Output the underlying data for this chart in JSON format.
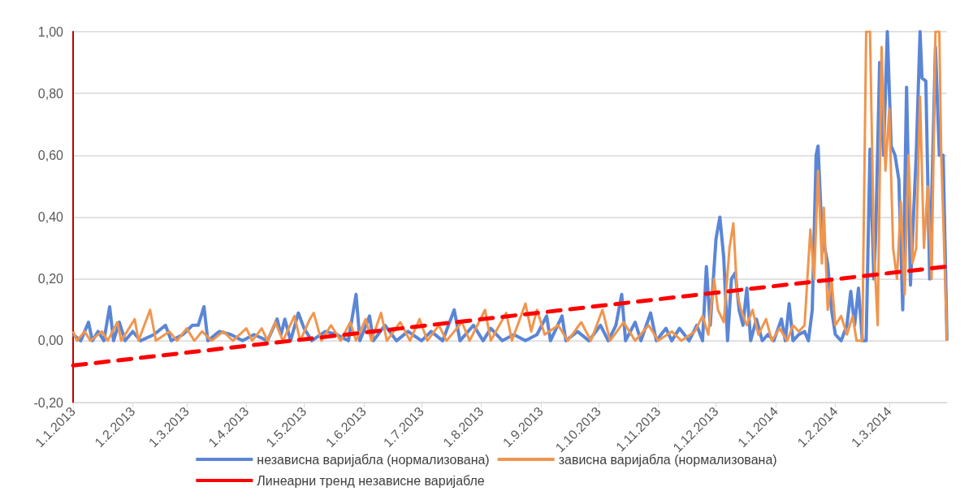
{
  "chart_data": {
    "type": "line",
    "marker": "none",
    "grid": "y",
    "legend": "bottom",
    "xlim": [
      "2013-01-01",
      "2014-03-31"
    ],
    "xticks": [
      {
        "value": "2013-01-01",
        "label": "1.1.2013"
      },
      {
        "value": "2013-02-01",
        "label": "1.2.2013"
      },
      {
        "value": "2013-03-01",
        "label": "1.3.2013"
      },
      {
        "value": "2013-04-01",
        "label": "1.4.2013"
      },
      {
        "value": "2013-05-01",
        "label": "1.5.2013"
      },
      {
        "value": "2013-06-01",
        "label": "1.6.2013"
      },
      {
        "value": "2013-07-01",
        "label": "1.7.2013"
      },
      {
        "value": "2013-08-01",
        "label": "1.8.2013"
      },
      {
        "value": "2013-09-01",
        "label": "1.9.2013"
      },
      {
        "value": "2013-10-01",
        "label": "1.10.2013"
      },
      {
        "value": "2013-11-01",
        "label": "1.11.2013"
      },
      {
        "value": "2013-12-01",
        "label": "1.12.2013"
      },
      {
        "value": "2014-01-01",
        "label": "1.1.2014"
      },
      {
        "value": "2014-02-01",
        "label": "1.2.2014"
      },
      {
        "value": "2014-03-01",
        "label": "1.3.2014"
      }
    ],
    "ylim": [
      -0.2,
      1
    ],
    "yticks": [
      {
        "value": -0.2,
        "label": "-0,20"
      },
      {
        "value": 0,
        "label": "0,00"
      },
      {
        "value": 0.2,
        "label": "0,20"
      },
      {
        "value": 0.4,
        "label": "0,40"
      },
      {
        "value": 0.6,
        "label": "0,60"
      },
      {
        "value": 0.8,
        "label": "0,80"
      },
      {
        "value": 1,
        "label": "1,00"
      }
    ],
    "series": [
      {
        "name": "независна варијабла (нормализована)",
        "color": "#5b86d6",
        "line_style": "solid",
        "x": [
          "2013-01-01",
          "2013-01-05",
          "2013-01-09",
          "2013-01-11",
          "2013-01-14",
          "2013-01-17",
          "2013-01-20",
          "2013-01-22",
          "2013-01-25",
          "2013-01-28",
          "2013-02-01",
          "2013-02-05",
          "2013-02-12",
          "2013-02-18",
          "2013-02-21",
          "2013-02-27",
          "2013-03-04",
          "2013-03-07",
          "2013-03-10",
          "2013-03-12",
          "2013-03-18",
          "2013-03-24",
          "2013-03-30",
          "2013-04-05",
          "2013-04-12",
          "2013-04-17",
          "2013-04-19",
          "2013-04-21",
          "2013-04-24",
          "2013-04-28",
          "2013-05-01",
          "2013-05-05",
          "2013-05-12",
          "2013-05-18",
          "2013-05-24",
          "2013-05-28",
          "2013-05-30",
          "2013-06-04",
          "2013-06-06",
          "2013-06-12",
          "2013-06-18",
          "2013-06-24",
          "2013-07-01",
          "2013-07-06",
          "2013-07-12",
          "2013-07-18",
          "2013-07-21",
          "2013-07-28",
          "2013-08-02",
          "2013-08-06",
          "2013-08-12",
          "2013-08-18",
          "2013-08-24",
          "2013-08-30",
          "2013-09-04",
          "2013-09-06",
          "2013-09-12",
          "2013-09-14",
          "2013-09-20",
          "2013-09-26",
          "2013-10-02",
          "2013-10-06",
          "2013-10-10",
          "2013-10-13",
          "2013-10-15",
          "2013-10-20",
          "2013-10-23",
          "2013-10-28",
          "2013-10-31",
          "2013-11-05",
          "2013-11-08",
          "2013-11-12",
          "2013-11-17",
          "2013-11-21",
          "2013-11-24",
          "2013-11-26",
          "2013-11-28",
          "2013-12-01",
          "2013-12-03",
          "2013-12-05",
          "2013-12-07",
          "2013-12-09",
          "2013-12-11",
          "2013-12-13",
          "2013-12-15",
          "2013-12-17",
          "2013-12-19",
          "2013-12-22",
          "2013-12-25",
          "2013-12-28",
          "2013-12-31",
          "2014-01-04",
          "2014-01-06",
          "2014-01-08",
          "2014-01-10",
          "2014-01-13",
          "2014-01-16",
          "2014-01-18",
          "2014-01-20",
          "2014-01-22",
          "2014-01-23",
          "2014-01-25",
          "2014-01-28",
          "2014-01-30",
          "2014-02-01",
          "2014-02-04",
          "2014-02-07",
          "2014-02-09",
          "2014-02-11",
          "2014-02-13",
          "2014-02-15",
          "2014-02-17",
          "2014-02-19",
          "2014-02-21",
          "2014-02-22",
          "2014-02-24",
          "2014-02-26",
          "2014-02-28",
          "2014-03-02",
          "2014-03-04",
          "2014-03-06",
          "2014-03-08",
          "2014-03-10",
          "2014-03-12",
          "2014-03-15",
          "2014-03-17",
          "2014-03-18",
          "2014-03-20",
          "2014-03-22",
          "2014-03-25",
          "2014-03-27",
          "2014-03-29",
          "2014-03-31"
        ],
        "values": [
          0.02,
          0,
          0.06,
          0,
          0.03,
          0,
          0.11,
          0,
          0.06,
          0,
          0.03,
          0,
          0.02,
          0.05,
          0,
          0.02,
          0.05,
          0.05,
          0.11,
          0,
          0.03,
          0.02,
          0,
          0.02,
          0,
          0.07,
          0.02,
          0.07,
          0,
          0.09,
          0.04,
          0,
          0.03,
          0.02,
          0,
          0.15,
          0,
          0.08,
          0,
          0.05,
          0,
          0.03,
          0,
          0.03,
          0,
          0.1,
          0,
          0.05,
          0,
          0.04,
          0,
          0.02,
          0,
          0.02,
          0.08,
          0,
          0.08,
          0,
          0.03,
          0,
          0.05,
          0,
          0.05,
          0.15,
          0,
          0.06,
          0,
          0.09,
          0,
          0.04,
          0,
          0.04,
          0,
          0.05,
          0,
          0.24,
          0.05,
          0.33,
          0.4,
          0.27,
          0,
          0.2,
          0.22,
          0.1,
          0.05,
          0.17,
          0,
          0.07,
          0,
          0.02,
          0,
          0.07,
          0,
          0.12,
          0,
          0.02,
          0.03,
          0,
          0.1,
          0.6,
          0.63,
          0.35,
          0.25,
          0.1,
          0.02,
          0,
          0.05,
          0.16,
          0.05,
          0.17,
          0,
          0,
          0.62,
          0.2,
          0.35,
          0.9,
          0.6,
          1,
          0.63,
          0.6,
          0.52,
          0.1,
          0.82,
          0.18,
          0.6,
          1,
          0.85,
          0.84,
          0.2,
          0.95,
          0.6,
          0.6,
          0
        ]
      },
      {
        "name": "зависна варијабла (нормализована)",
        "color": "#f0954d",
        "line_style": "solid",
        "x": [
          "2013-01-01",
          "2013-01-03",
          "2013-01-07",
          "2013-01-10",
          "2013-01-16",
          "2013-01-19",
          "2013-01-24",
          "2013-01-26",
          "2013-02-02",
          "2013-02-04",
          "2013-02-10",
          "2013-02-13",
          "2013-02-20",
          "2013-02-24",
          "2013-03-01",
          "2013-03-05",
          "2013-03-09",
          "2013-03-14",
          "2013-03-20",
          "2013-03-25",
          "2013-04-01",
          "2013-04-04",
          "2013-04-09",
          "2013-04-12",
          "2013-04-16",
          "2013-04-20",
          "2013-04-26",
          "2013-04-29",
          "2013-05-04",
          "2013-05-06",
          "2013-05-10",
          "2013-05-15",
          "2013-05-20",
          "2013-05-25",
          "2013-05-28",
          "2013-06-02",
          "2013-06-05",
          "2013-06-10",
          "2013-06-13",
          "2013-06-20",
          "2013-06-25",
          "2013-06-30",
          "2013-07-04",
          "2013-07-10",
          "2013-07-14",
          "2013-07-22",
          "2013-07-26",
          "2013-08-03",
          "2013-08-06",
          "2013-08-14",
          "2013-08-17",
          "2013-08-24",
          "2013-08-27",
          "2013-08-30",
          "2013-09-03",
          "2013-09-10",
          "2013-09-15",
          "2013-09-22",
          "2013-09-27",
          "2013-10-03",
          "2013-10-07",
          "2013-10-14",
          "2013-10-20",
          "2013-10-27",
          "2013-11-01",
          "2013-11-08",
          "2013-11-13",
          "2013-11-20",
          "2013-11-24",
          "2013-11-27",
          "2013-11-30",
          "2013-12-02",
          "2013-12-05",
          "2013-12-08",
          "2013-12-10",
          "2013-12-12",
          "2013-12-14",
          "2013-12-17",
          "2013-12-20",
          "2013-12-23",
          "2013-12-27",
          "2013-12-30",
          "2014-01-03",
          "2014-01-07",
          "2014-01-10",
          "2014-01-13",
          "2014-01-16",
          "2014-01-19",
          "2014-01-21",
          "2014-01-23",
          "2014-01-25",
          "2014-01-26",
          "2014-01-28",
          "2014-01-30",
          "2014-02-01",
          "2014-02-04",
          "2014-02-07",
          "2014-02-10",
          "2014-02-12",
          "2014-02-15",
          "2014-02-17",
          "2014-02-19",
          "2014-02-21",
          "2014-02-23",
          "2014-02-25",
          "2014-02-27",
          "2014-03-01",
          "2014-03-03",
          "2014-03-05",
          "2014-03-07",
          "2014-03-09",
          "2014-03-11",
          "2014-03-13",
          "2014-03-15",
          "2014-03-17",
          "2014-03-19",
          "2014-03-21",
          "2014-03-23",
          "2014-03-25",
          "2014-03-27",
          "2014-03-28",
          "2014-03-31"
        ],
        "values": [
          0.03,
          0,
          0.03,
          0,
          0.03,
          0,
          0.06,
          0,
          0.07,
          0,
          0.1,
          0,
          0.03,
          0,
          0.04,
          0,
          0.03,
          0,
          0.03,
          0,
          0.04,
          0,
          0.04,
          0,
          0.06,
          0,
          0.08,
          0,
          0.07,
          0.09,
          0,
          0.05,
          0,
          0.06,
          0,
          0.07,
          0,
          0.09,
          0,
          0.06,
          0,
          0.07,
          0,
          0.05,
          0,
          0.06,
          0,
          0.1,
          0,
          0.09,
          0,
          0.12,
          0.03,
          0.1,
          0.02,
          0.05,
          0,
          0.06,
          0,
          0.1,
          0,
          0.06,
          0,
          0.05,
          0,
          0.03,
          0,
          0.03,
          0.08,
          0.02,
          0.2,
          0.1,
          0.06,
          0.3,
          0.38,
          0.15,
          0.1,
          0.05,
          0.1,
          0.02,
          0.07,
          0,
          0.04,
          0,
          0.05,
          0.03,
          0.05,
          0.36,
          0.2,
          0.55,
          0.25,
          0.43,
          0.1,
          0.2,
          0.05,
          0.08,
          0.02,
          0.08,
          0,
          0,
          1,
          1,
          0.3,
          0.05,
          0.95,
          0.55,
          0.75,
          0.3,
          0.2,
          0.45,
          0.15,
          0.6,
          0.25,
          0.3,
          0.79,
          0.3,
          0.5,
          0.2,
          1,
          1,
          0.6,
          0
        ]
      },
      {
        "name": "Линеарни тренд независне варијабле",
        "color": "#ff0000",
        "line_style": "dashed",
        "x": [
          "2013-01-01",
          "2014-03-31"
        ],
        "values": [
          -0.08,
          0.24
        ]
      }
    ]
  }
}
